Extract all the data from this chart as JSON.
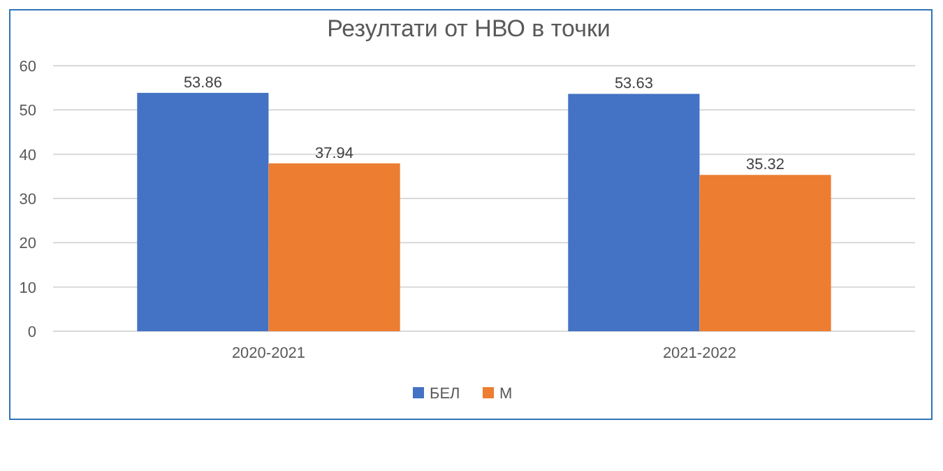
{
  "chart_data": {
    "type": "bar",
    "title": "Резултати от НВО в точки",
    "categories": [
      "2020-2021",
      "2021-2022"
    ],
    "series": [
      {
        "name": "БЕЛ",
        "color": "#4472c4",
        "values": [
          53.86,
          53.63
        ]
      },
      {
        "name": "М",
        "color": "#ed7d31",
        "values": [
          37.94,
          35.32
        ]
      }
    ],
    "ylim": [
      0,
      60
    ],
    "yticks": [
      0,
      10,
      20,
      30,
      40,
      50,
      60
    ],
    "grid": "y",
    "legend": "bottom",
    "data_labels": true
  }
}
